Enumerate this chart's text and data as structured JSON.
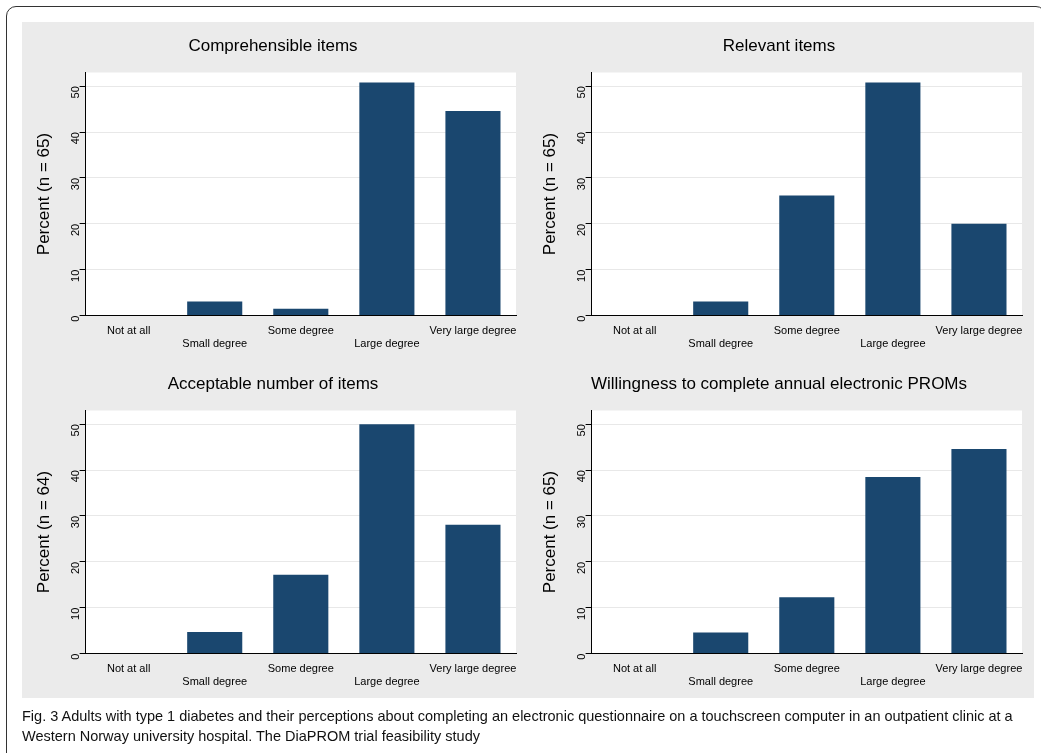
{
  "chart_data": [
    {
      "type": "bar",
      "title": "Comprehensible items",
      "ylabel": "Percent (n = 65)",
      "categories": [
        "Not at all",
        "Small degree",
        "Some degree",
        "Large degree",
        "Very large degree"
      ],
      "values": [
        0,
        3.1,
        1.5,
        50.8,
        44.6
      ],
      "color": "#1a476f",
      "ylim": [
        0,
        53
      ],
      "yticks": [
        0,
        10,
        20,
        30,
        40,
        50
      ],
      "grid": "y",
      "annotations": [
        "Fig. 3 Adults with type 1 diabetes and their perceptions about completing an electronic questionnaire on a touchscreen computer in an outpatient clinic at a Western Norway university hospital. The DiaPROM trial feasibility study"
      ]
    },
    {
      "type": "bar",
      "title": "Relevant items",
      "ylabel": "Percent (n = 65)",
      "categories": [
        "Not at all",
        "Small degree",
        "Some degree",
        "Large degree",
        "Very large degree"
      ],
      "values": [
        0,
        3.1,
        26.2,
        50.8,
        20.0
      ],
      "color": "#1a476f",
      "ylim": [
        0,
        53
      ],
      "yticks": [
        0,
        10,
        20,
        30,
        40,
        50
      ],
      "grid": "y"
    },
    {
      "type": "bar",
      "title": "Acceptable number of items",
      "ylabel": "Percent (n = 64)",
      "categories": [
        "Not at all",
        "Small degree",
        "Some degree",
        "Large degree",
        "Very large degree"
      ],
      "values": [
        0,
        4.7,
        17.2,
        50.0,
        28.1
      ],
      "color": "#1a476f",
      "ylim": [
        0,
        53
      ],
      "yticks": [
        0,
        10,
        20,
        30,
        40,
        50
      ],
      "grid": "y"
    },
    {
      "type": "bar",
      "title": "Willingness to complete annual electronic PROMs",
      "ylabel": "Percent (n = 65)",
      "categories": [
        "Not at all",
        "Small degree",
        "Some degree",
        "Large degree",
        "Very large degree"
      ],
      "values": [
        0,
        4.6,
        12.3,
        38.5,
        44.6
      ],
      "color": "#1a476f",
      "ylim": [
        0,
        53
      ],
      "yticks": [
        0,
        10,
        20,
        30,
        40,
        50
      ],
      "grid": "y"
    }
  ]
}
